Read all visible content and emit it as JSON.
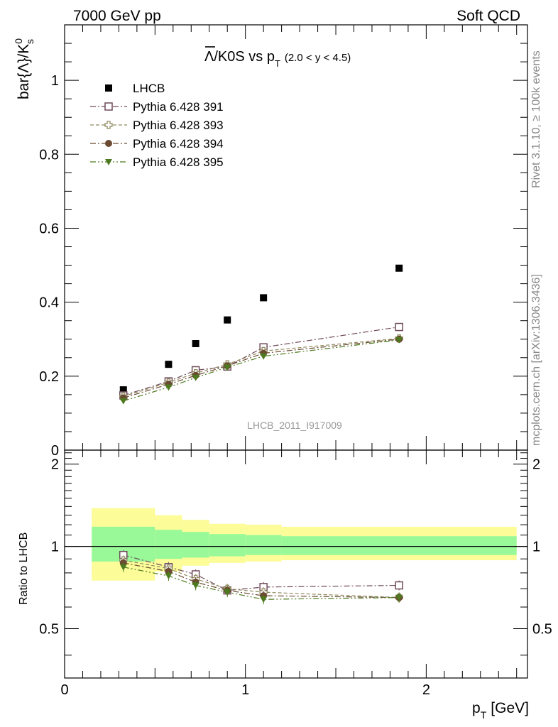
{
  "header": {
    "left": "7000 GeV pp",
    "right": "Soft QCD"
  },
  "side_labels": {
    "rivet": "Rivet 3.1.10, ≥ 100k events",
    "mcplots": "mcplots.cern.ch [arXiv:1306.3436]"
  },
  "chart_data": [
    {
      "type": "scatter",
      "title_parts": {
        "main": "Λ/K0S vs p",
        "sub": "T",
        "range": "(2.0 < y < 4.5)"
      },
      "ylabel": "bar{Λ}/K",
      "ylabel_sup": "0",
      "ylabel_sub": "s",
      "watermark": "LHCB_2011_I917009",
      "xlim": [
        0,
        2.56
      ],
      "ylim": [
        0,
        1.15
      ],
      "yticks": [
        0,
        0.2,
        0.4,
        0.6,
        0.8,
        1
      ],
      "ytick_labels": [
        "0",
        "0.2",
        "0.4",
        "0.6",
        "0.8",
        "1"
      ],
      "legend_position": "top-left",
      "x": [
        0.325,
        0.575,
        0.725,
        0.9,
        1.1,
        1.85
      ],
      "series": [
        {
          "name": "LHCB",
          "color": "#000000",
          "marker": "square-filled",
          "line": "none",
          "values": [
            0.163,
            0.232,
            0.288,
            0.352,
            0.412,
            0.492
          ]
        },
        {
          "name": "Pythia 6.428 391",
          "color": "#6f4a5a",
          "marker": "square-open",
          "line": "dashdot",
          "values": [
            0.148,
            0.186,
            0.216,
            0.226,
            0.278,
            0.333
          ]
        },
        {
          "name": "Pythia 6.428 393",
          "color": "#8f8a60",
          "marker": "plus-open",
          "line": "dashed",
          "values": [
            0.145,
            0.183,
            0.208,
            0.232,
            0.268,
            0.302
          ]
        },
        {
          "name": "Pythia 6.428 394",
          "color": "#6b4a32",
          "marker": "circle-filled",
          "line": "dashdot",
          "values": [
            0.141,
            0.178,
            0.202,
            0.228,
            0.262,
            0.3
          ]
        },
        {
          "name": "Pythia 6.428 395",
          "color": "#4d7a1e",
          "marker": "triangle-down-filled",
          "line": "dashdotdot",
          "values": [
            0.133,
            0.17,
            0.196,
            0.224,
            0.254,
            0.298
          ]
        }
      ]
    },
    {
      "type": "scatter",
      "ylabel": "Ratio to LHCB",
      "xlabel": "p",
      "xlabel_sub": "T",
      "xlabel_unit": "[GeV]",
      "xlim": [
        0,
        2.56
      ],
      "ylim": [
        0.33,
        2.25
      ],
      "xticks": [
        0,
        1,
        2
      ],
      "xtick_labels": [
        "0",
        "1",
        "2"
      ],
      "yticks": [
        0.5,
        1,
        2
      ],
      "ytick_labels": [
        "0.5",
        "1",
        "2"
      ],
      "reference_line": 1,
      "bands": {
        "bins": [
          {
            "x0": 0.15,
            "x1": 0.5,
            "inner": [
              0.88,
              1.18
            ],
            "outer": [
              0.75,
              1.38
            ]
          },
          {
            "x0": 0.5,
            "x1": 0.65,
            "inner": [
              0.9,
              1.15
            ],
            "outer": [
              0.81,
              1.3
            ]
          },
          {
            "x0": 0.65,
            "x1": 0.8,
            "inner": [
              0.91,
              1.13
            ],
            "outer": [
              0.85,
              1.25
            ]
          },
          {
            "x0": 0.8,
            "x1": 1.0,
            "inner": [
              0.92,
              1.11
            ],
            "outer": [
              0.87,
              1.21
            ]
          },
          {
            "x0": 1.0,
            "x1": 1.2,
            "inner": [
              0.93,
              1.1
            ],
            "outer": [
              0.88,
              1.2
            ]
          },
          {
            "x0": 1.2,
            "x1": 2.5,
            "inner": [
              0.93,
              1.09
            ],
            "outer": [
              0.89,
              1.18
            ]
          }
        ],
        "inner_color": "#99f999",
        "outer_color": "#fcfc99"
      },
      "x": [
        0.325,
        0.575,
        0.725,
        0.9,
        1.1,
        1.85
      ],
      "series": [
        {
          "name": "Pythia 6.428 391",
          "color": "#6f4a5a",
          "marker": "square-open",
          "line": "dashdot",
          "values": [
            0.93,
            0.84,
            0.79,
            0.69,
            0.71,
            0.72
          ]
        },
        {
          "name": "Pythia 6.428 393",
          "color": "#8f8a60",
          "marker": "plus-open",
          "line": "dashed",
          "values": [
            0.89,
            0.83,
            0.76,
            0.7,
            0.68,
            0.65
          ]
        },
        {
          "name": "Pythia 6.428 394",
          "color": "#6b4a32",
          "marker": "circle-filled",
          "line": "dashdot",
          "values": [
            0.87,
            0.81,
            0.74,
            0.69,
            0.66,
            0.65
          ]
        },
        {
          "name": "Pythia 6.428 395",
          "color": "#4d7a1e",
          "marker": "triangle-down-filled",
          "line": "dashdotdot",
          "values": [
            0.84,
            0.78,
            0.72,
            0.68,
            0.64,
            0.65
          ]
        }
      ]
    }
  ]
}
